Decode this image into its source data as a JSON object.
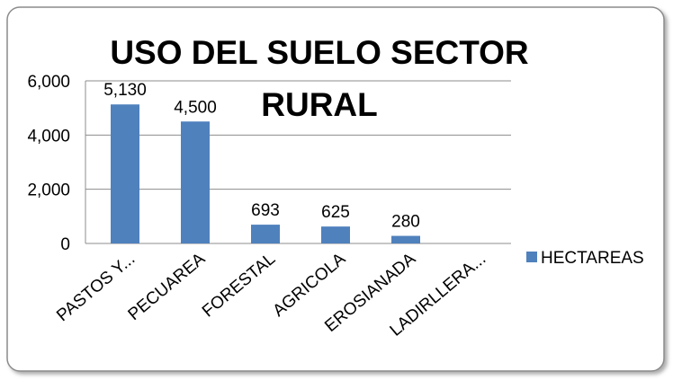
{
  "chart_data": {
    "type": "bar",
    "title": "USO DEL SUELO SECTOR RURAL",
    "categories": [
      "PASTOS Y...",
      "PECUAREA",
      "FORESTAL",
      "AGRICOLA",
      "EROSIANADA",
      "LADIRLLERA..."
    ],
    "series": [
      {
        "name": "HECTAREAS",
        "color": "#4f81bd",
        "values": [
          5130,
          4500,
          693,
          625,
          280,
          null
        ],
        "value_labels": [
          "5,130",
          "4,500",
          "693",
          "625",
          "280",
          null
        ]
      }
    ],
    "ylim": [
      0,
      6000
    ],
    "yticks": [
      0,
      {
        "value": 2000,
        "label": "2,000"
      },
      {
        "value": 4000,
        "label": "4,000"
      },
      {
        "value": 6000,
        "label": "6,000"
      }
    ],
    "grid": true,
    "legend": "right"
  }
}
